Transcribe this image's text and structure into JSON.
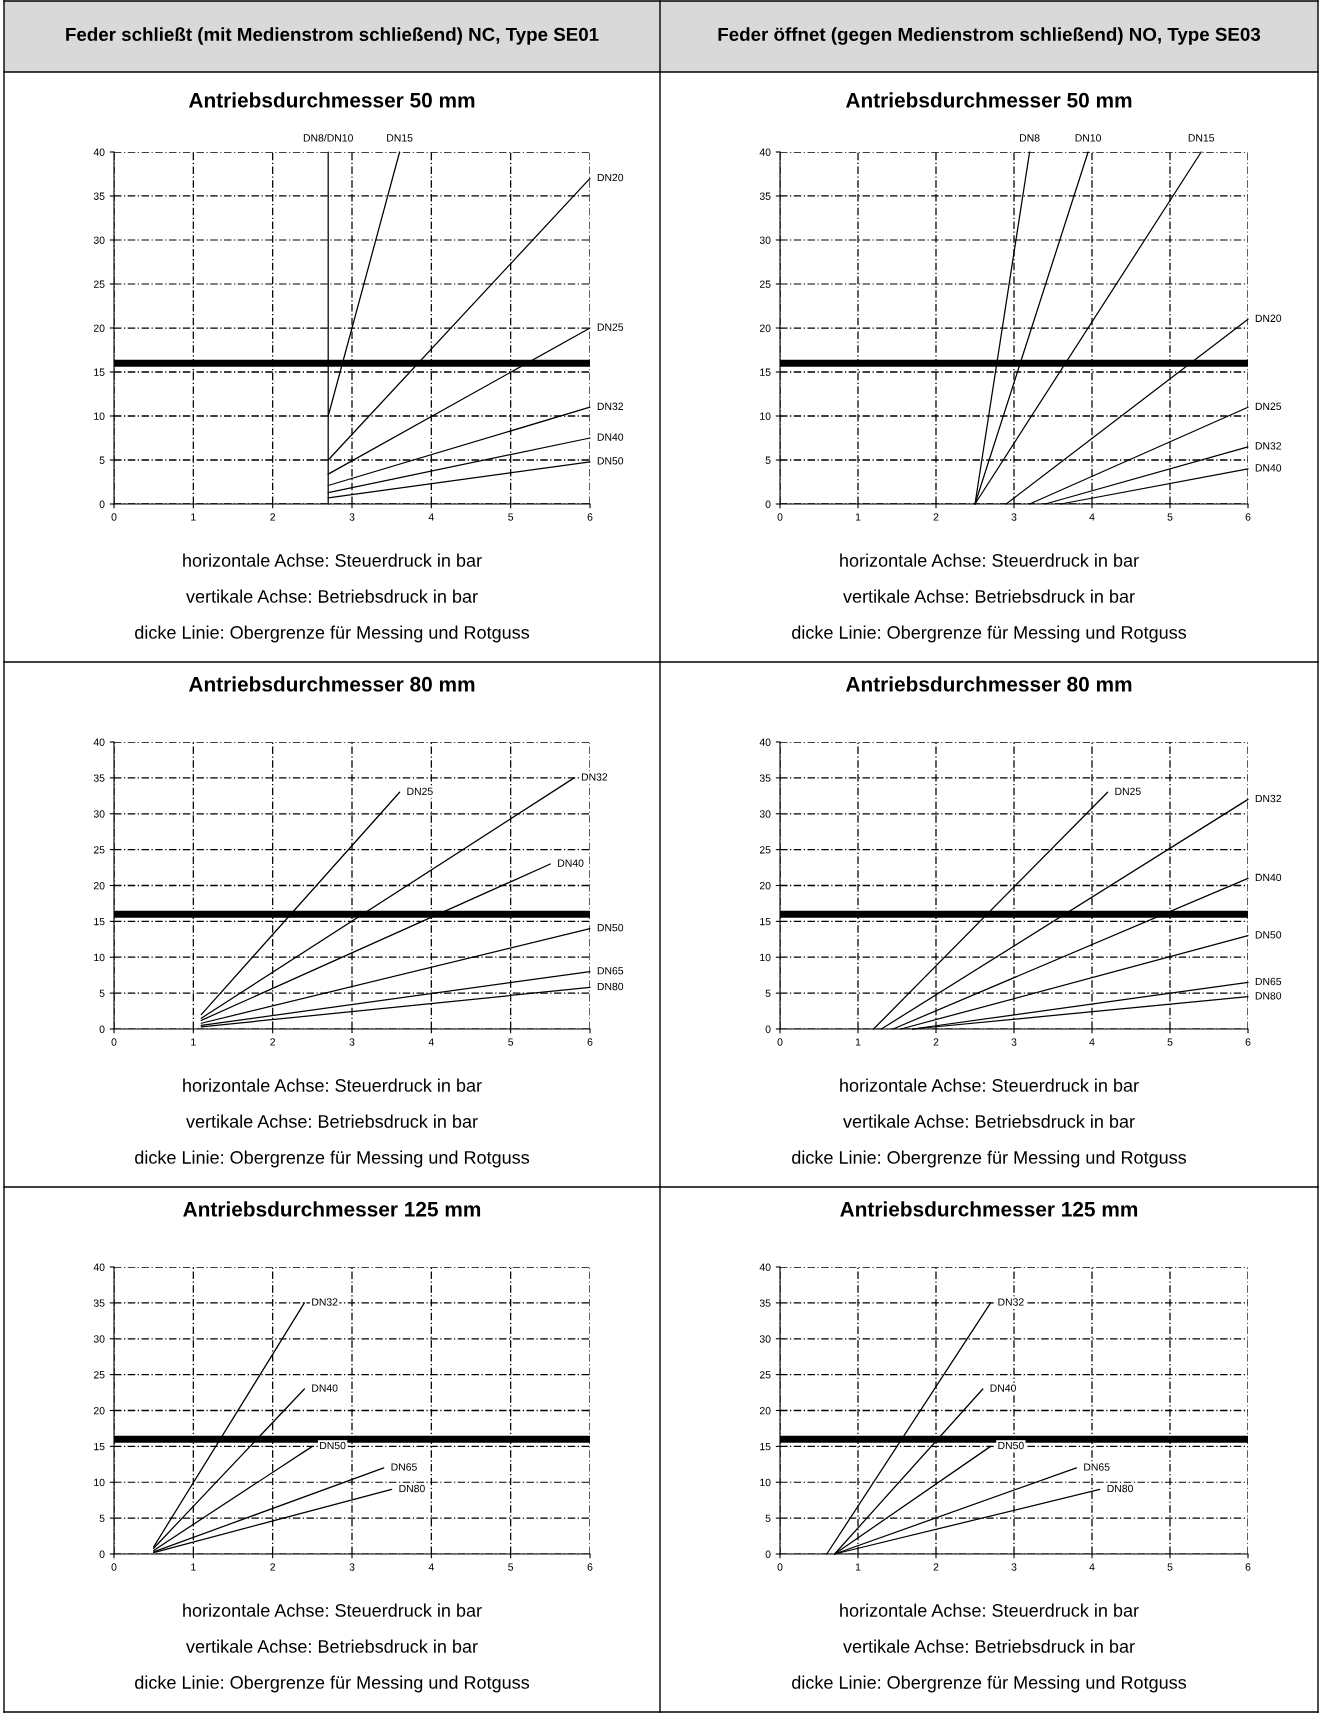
{
  "chart_data": [
    {
      "type": "line",
      "title": "Feder schließt (mit Medienstrom schließend) NC, Type SE01",
      "subtitle": "Antriebsdurchmesser 50 mm",
      "xlim": [
        0,
        6
      ],
      "ylim": [
        0,
        40
      ],
      "xticks": [
        0,
        1,
        2,
        3,
        4,
        5,
        6
      ],
      "yticks": [
        0,
        5,
        10,
        15,
        20,
        25,
        30,
        35,
        40
      ],
      "grid": true,
      "legend": false,
      "marker": "none",
      "line_style": "solid",
      "series": [
        {
          "name": "DN8/DN10",
          "color": "#000000",
          "x": [
            2.7,
            2.7
          ],
          "values": [
            0,
            40
          ]
        },
        {
          "name": "DN15",
          "color": "#000000",
          "x": [
            2.7,
            3.6
          ],
          "values": [
            10,
            40
          ]
        },
        {
          "name": "DN20",
          "color": "#000000",
          "x": [
            2.7,
            6
          ],
          "values": [
            5,
            37
          ]
        },
        {
          "name": "DN25",
          "color": "#000000",
          "x": [
            2.7,
            6
          ],
          "values": [
            3.4,
            20
          ]
        },
        {
          "name": "DN32",
          "color": "#000000",
          "x": [
            2.7,
            6
          ],
          "values": [
            2.1,
            11
          ]
        },
        {
          "name": "DN40",
          "color": "#000000",
          "x": [
            2.7,
            6
          ],
          "values": [
            1.3,
            7.5
          ]
        },
        {
          "name": "DN50",
          "color": "#000000",
          "x": [
            2.7,
            6
          ],
          "values": [
            0.7,
            4.8
          ]
        }
      ],
      "ref_lines": [
        {
          "axis": "y",
          "value": 16,
          "label": null,
          "color": "#000000"
        }
      ],
      "annotations": [
        "horizontale Achse: Steuerdruck in bar",
        "vertikale Achse: Betriebsdruck in bar",
        "dicke Linie: Obergrenze für Messing und Rotguss"
      ]
    },
    {
      "type": "line",
      "title": "Feder öffnet (gegen Medienstrom schließend) NO, Type SE03",
      "subtitle": "Antriebsdurchmesser 50 mm",
      "xlim": [
        0,
        6
      ],
      "ylim": [
        0,
        40
      ],
      "xticks": [
        0,
        1,
        2,
        3,
        4,
        5,
        6
      ],
      "yticks": [
        0,
        5,
        10,
        15,
        20,
        25,
        30,
        35,
        40
      ],
      "grid": true,
      "legend": false,
      "marker": "none",
      "line_style": "solid",
      "series": [
        {
          "name": "DN8",
          "color": "#000000",
          "x": [
            2.5,
            3.2
          ],
          "values": [
            0,
            40
          ]
        },
        {
          "name": "DN10",
          "color": "#000000",
          "x": [
            2.5,
            3.95
          ],
          "values": [
            0,
            40
          ]
        },
        {
          "name": "DN15",
          "color": "#000000",
          "x": [
            2.5,
            5.4
          ],
          "values": [
            0,
            40
          ]
        },
        {
          "name": "DN20",
          "color": "#000000",
          "x": [
            2.9,
            6
          ],
          "values": [
            0,
            21
          ]
        },
        {
          "name": "DN25",
          "color": "#000000",
          "x": [
            3.2,
            6
          ],
          "values": [
            0,
            11
          ]
        },
        {
          "name": "DN32",
          "color": "#000000",
          "x": [
            3.4,
            6
          ],
          "values": [
            0,
            6.5
          ]
        },
        {
          "name": "DN40",
          "color": "#000000",
          "x": [
            3.6,
            6
          ],
          "values": [
            0,
            4
          ]
        }
      ],
      "ref_lines": [
        {
          "axis": "y",
          "value": 16,
          "label": null,
          "color": "#000000"
        }
      ],
      "annotations": [
        "horizontale Achse: Steuerdruck in bar",
        "vertikale Achse: Betriebsdruck in bar",
        "dicke Linie: Obergrenze für Messing und Rotguss"
      ]
    },
    {
      "type": "line",
      "title": "Antriebsdurchmesser 80 mm",
      "xlim": [
        0,
        6
      ],
      "ylim": [
        0,
        40
      ],
      "xticks": [
        0,
        1,
        2,
        3,
        4,
        5,
        6
      ],
      "yticks": [
        0,
        5,
        10,
        15,
        20,
        25,
        30,
        35,
        40
      ],
      "grid": true,
      "legend": false,
      "marker": "none",
      "line_style": "solid",
      "series": [
        {
          "name": "DN25",
          "color": "#000000",
          "x": [
            1.1,
            3.6
          ],
          "values": [
            2,
            33
          ]
        },
        {
          "name": "DN32",
          "color": "#000000",
          "x": [
            1.1,
            5.8
          ],
          "values": [
            1.5,
            35
          ]
        },
        {
          "name": "DN40",
          "color": "#000000",
          "x": [
            1.1,
            5.5
          ],
          "values": [
            1.2,
            23
          ]
        },
        {
          "name": "DN50",
          "color": "#000000",
          "x": [
            1.1,
            6
          ],
          "values": [
            0.8,
            14
          ]
        },
        {
          "name": "DN65",
          "color": "#000000",
          "x": [
            1.1,
            6
          ],
          "values": [
            0.5,
            8
          ]
        },
        {
          "name": "DN80",
          "color": "#000000",
          "x": [
            1.1,
            6
          ],
          "values": [
            0.3,
            5.8
          ]
        }
      ],
      "ref_lines": [
        {
          "axis": "y",
          "value": 16,
          "label": null,
          "color": "#000000"
        }
      ],
      "annotations": [
        "horizontale Achse: Steuerdruck in bar",
        "vertikale Achse: Betriebsdruck in bar",
        "dicke Linie: Obergrenze für Messing und Rotguss"
      ]
    },
    {
      "type": "line",
      "title": "Antriebsdurchmesser 80 mm",
      "xlim": [
        0,
        6
      ],
      "ylim": [
        0,
        40
      ],
      "xticks": [
        0,
        1,
        2,
        3,
        4,
        5,
        6
      ],
      "yticks": [
        0,
        5,
        10,
        15,
        20,
        25,
        30,
        35,
        40
      ],
      "grid": true,
      "legend": false,
      "marker": "none",
      "line_style": "solid",
      "series": [
        {
          "name": "DN25",
          "color": "#000000",
          "x": [
            1.2,
            4.2
          ],
          "values": [
            0,
            33
          ]
        },
        {
          "name": "DN32",
          "color": "#000000",
          "x": [
            1.3,
            6
          ],
          "values": [
            0,
            32
          ]
        },
        {
          "name": "DN40",
          "color": "#000000",
          "x": [
            1.45,
            6
          ],
          "values": [
            0,
            21
          ]
        },
        {
          "name": "DN50",
          "color": "#000000",
          "x": [
            1.55,
            6
          ],
          "values": [
            0,
            13
          ]
        },
        {
          "name": "DN65",
          "color": "#000000",
          "x": [
            1.7,
            6
          ],
          "values": [
            0,
            6.5
          ]
        },
        {
          "name": "DN80",
          "color": "#000000",
          "x": [
            1.7,
            6
          ],
          "values": [
            0,
            4.5
          ]
        }
      ],
      "ref_lines": [
        {
          "axis": "y",
          "value": 16,
          "label": null,
          "color": "#000000"
        }
      ],
      "annotations": [
        "horizontale Achse: Steuerdruck in bar",
        "vertikale Achse: Betriebsdruck in bar",
        "dicke Linie: Obergrenze für Messing und Rotguss"
      ]
    },
    {
      "type": "line",
      "title": "Antriebsdurchmesser 125 mm",
      "xlim": [
        0,
        6
      ],
      "ylim": [
        0,
        40
      ],
      "xticks": [
        0,
        1,
        2,
        3,
        4,
        5,
        6
      ],
      "yticks": [
        0,
        5,
        10,
        15,
        20,
        25,
        30,
        35,
        40
      ],
      "grid": true,
      "legend": false,
      "marker": "none",
      "line_style": "solid",
      "series": [
        {
          "name": "DN32",
          "color": "#000000",
          "x": [
            0.5,
            2.4
          ],
          "values": [
            1,
            35
          ]
        },
        {
          "name": "DN40",
          "color": "#000000",
          "x": [
            0.5,
            2.4
          ],
          "values": [
            0.8,
            23
          ]
        },
        {
          "name": "DN50",
          "color": "#000000",
          "x": [
            0.5,
            2.5
          ],
          "values": [
            0.5,
            15
          ]
        },
        {
          "name": "DN65",
          "color": "#000000",
          "x": [
            0.5,
            3.4
          ],
          "values": [
            0.3,
            12
          ]
        },
        {
          "name": "DN80",
          "color": "#000000",
          "x": [
            0.5,
            3.5
          ],
          "values": [
            0.2,
            9
          ]
        }
      ],
      "ref_lines": [
        {
          "axis": "y",
          "value": 16,
          "label": null,
          "color": "#000000"
        }
      ],
      "annotations": [
        "horizontale Achse: Steuerdruck in bar",
        "vertikale Achse: Betriebsdruck in bar",
        "dicke Linie: Obergrenze für Messing und Rotguss"
      ]
    },
    {
      "type": "line",
      "title": "Antriebsdurchmesser 125 mm",
      "xlim": [
        0,
        6
      ],
      "ylim": [
        0,
        40
      ],
      "xticks": [
        0,
        1,
        2,
        3,
        4,
        5,
        6
      ],
      "yticks": [
        0,
        5,
        10,
        15,
        20,
        25,
        30,
        35,
        40
      ],
      "grid": true,
      "legend": false,
      "marker": "none",
      "line_style": "solid",
      "series": [
        {
          "name": "DN32",
          "color": "#000000",
          "x": [
            0.6,
            2.7
          ],
          "values": [
            0,
            35
          ]
        },
        {
          "name": "DN40",
          "color": "#000000",
          "x": [
            0.7,
            2.6
          ],
          "values": [
            0,
            23
          ]
        },
        {
          "name": "DN50",
          "color": "#000000",
          "x": [
            0.7,
            2.7
          ],
          "values": [
            0,
            15
          ]
        },
        {
          "name": "DN65",
          "color": "#000000",
          "x": [
            0.7,
            3.8
          ],
          "values": [
            0,
            12
          ]
        },
        {
          "name": "DN80",
          "color": "#000000",
          "x": [
            0.7,
            4.1
          ],
          "values": [
            0,
            9
          ]
        }
      ],
      "ref_lines": [
        {
          "axis": "y",
          "value": 16,
          "label": null,
          "color": "#000000"
        }
      ],
      "annotations": [
        "horizontale Achse: Steuerdruck in bar",
        "vertikale Achse: Betriebsdruck in bar",
        "dicke Linie: Obergrenze für Messing und Rotguss"
      ]
    }
  ]
}
